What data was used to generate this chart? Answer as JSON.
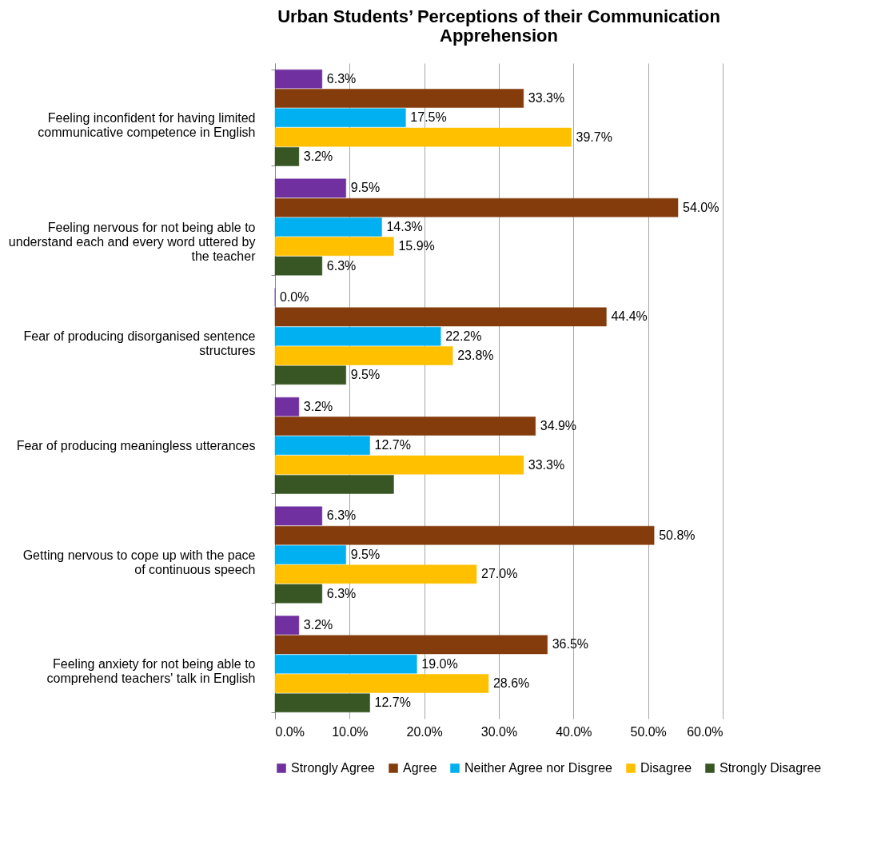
{
  "chart_data": {
    "type": "bar",
    "orientation": "horizontal",
    "title": "Urban Students’ Perceptions of their Communication Apprehension",
    "categories": [
      "Feeling inconfident for having limited communicative competence in English",
      "Feeling nervous for not being able to understand each and every word uttered by the teacher",
      "Fear of producing disorganised sentence structures",
      "Fear of producing meaningless utterances",
      "Getting nervous to cope up with the pace of continuous speech",
      "Feeling anxiety for not being able to comprehend teachers' talk in English"
    ],
    "series": [
      {
        "name": "Strongly Agree",
        "color": "#7030a0",
        "values": [
          6.3,
          9.5,
          0.0,
          3.2,
          6.3,
          3.2
        ],
        "value_labels": [
          "6.3%",
          "9.5%",
          "0.0%",
          "3.2%",
          "6.3%",
          "3.2%"
        ]
      },
      {
        "name": "Agree",
        "color": "#843c0c",
        "values": [
          33.3,
          54.0,
          44.4,
          34.9,
          50.8,
          36.5
        ],
        "value_labels": [
          "33.3%",
          "54.0%",
          "44.4%",
          "34.9%",
          "50.8%",
          "36.5%"
        ]
      },
      {
        "name": "Neither Agree nor Disgree",
        "color": "#00b0f0",
        "values": [
          17.5,
          14.3,
          22.2,
          12.7,
          9.5,
          19.0
        ],
        "value_labels": [
          "17.5%",
          "14.3%",
          "22.2%",
          "12.7%",
          "9.5%",
          "19.0%"
        ]
      },
      {
        "name": "Disagree",
        "color": "#ffc000",
        "values": [
          39.7,
          15.9,
          23.8,
          33.3,
          27.0,
          28.6
        ],
        "value_labels": [
          "39.7%",
          "15.9%",
          "23.8%",
          "33.3%",
          "27.0%",
          "28.6%"
        ]
      },
      {
        "name": "Strongly Disagree",
        "color": "#375623",
        "values": [
          3.2,
          6.3,
          9.5,
          15.9,
          6.3,
          12.7
        ],
        "value_labels": [
          "3.2%",
          "6.3%",
          "9.5%",
          null,
          "6.3%",
          "12.7%"
        ]
      }
    ],
    "xlim": [
      0,
      60
    ],
    "xticks": [
      {
        "value": 0,
        "label": "0.0%"
      },
      {
        "value": 10,
        "label": "10.0%"
      },
      {
        "value": 20,
        "label": "20.0%"
      },
      {
        "value": 30,
        "label": "30.0%"
      },
      {
        "value": 40,
        "label": "40.0%"
      },
      {
        "value": 50,
        "label": "50.0%"
      },
      {
        "value": 60,
        "label": "60.0%"
      }
    ],
    "grid": "x",
    "legend": "bottom"
  }
}
